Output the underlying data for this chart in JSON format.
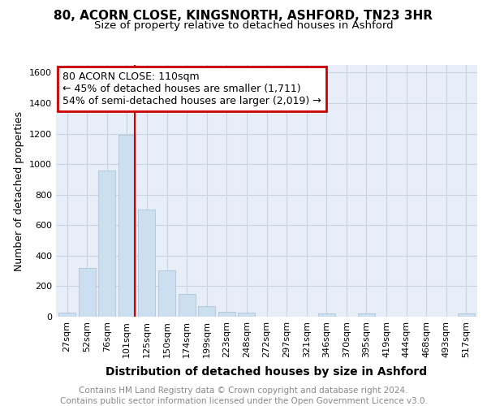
{
  "title1": "80, ACORN CLOSE, KINGSNORTH, ASHFORD, TN23 3HR",
  "title2": "Size of property relative to detached houses in Ashford",
  "xlabel": "Distribution of detached houses by size in Ashford",
  "ylabel": "Number of detached properties",
  "categories": [
    "27sqm",
    "52sqm",
    "76sqm",
    "101sqm",
    "125sqm",
    "150sqm",
    "174sqm",
    "199sqm",
    "223sqm",
    "248sqm",
    "272sqm",
    "297sqm",
    "321sqm",
    "346sqm",
    "370sqm",
    "395sqm",
    "419sqm",
    "444sqm",
    "468sqm",
    "493sqm",
    "517sqm"
  ],
  "values": [
    25,
    320,
    960,
    1190,
    700,
    305,
    150,
    70,
    30,
    25,
    0,
    0,
    0,
    20,
    0,
    20,
    0,
    0,
    0,
    0,
    20
  ],
  "bar_color": "#ccdff0",
  "bar_edge_color": "#aabcce",
  "annotation_line1": "80 ACORN CLOSE: 110sqm",
  "annotation_line2": "← 45% of detached houses are smaller (1,711)",
  "annotation_line3": "54% of semi-detached houses are larger (2,019) →",
  "annotation_box_color": "#ffffff",
  "annotation_box_edge_color": "#cc0000",
  "red_line_color": "#cc0000",
  "grid_color": "#c8d4e4",
  "bg_color": "#e8eef8",
  "ylim": [
    0,
    1650
  ],
  "yticks": [
    0,
    200,
    400,
    600,
    800,
    1000,
    1200,
    1400,
    1600
  ],
  "footer_line1": "Contains HM Land Registry data © Crown copyright and database right 2024.",
  "footer_line2": "Contains public sector information licensed under the Open Government Licence v3.0.",
  "title1_fontsize": 11,
  "title2_fontsize": 9.5,
  "xlabel_fontsize": 10,
  "ylabel_fontsize": 9,
  "tick_fontsize": 8,
  "annot_fontsize": 9,
  "footer_fontsize": 7.5
}
